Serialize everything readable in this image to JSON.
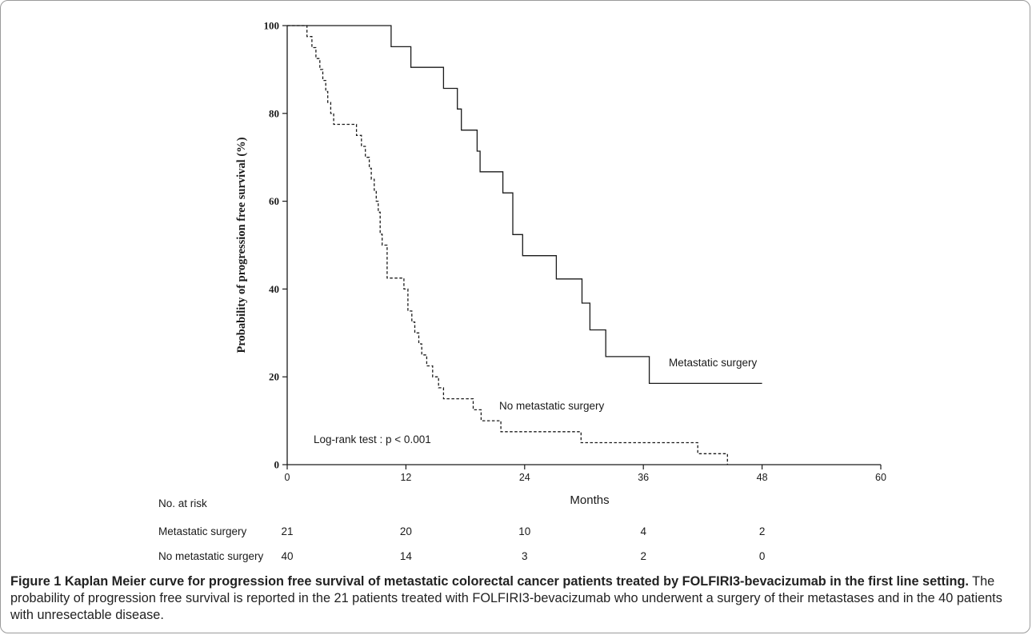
{
  "chart_data": {
    "type": "line",
    "subtype": "kaplan-meier-step",
    "ylabel": "Probability of progression free survival (%)",
    "xlabel": "Months",
    "xlim": [
      0,
      60
    ],
    "ylim": [
      0,
      100
    ],
    "xticks": [
      0,
      12,
      24,
      36,
      48,
      60
    ],
    "yticks": [
      0,
      20,
      40,
      60,
      80,
      100
    ],
    "xtick_labels": [
      "0",
      "12",
      "24",
      "36",
      "48",
      "60"
    ],
    "ytick_labels": [
      "0",
      "20",
      "40",
      "60",
      "80",
      "100"
    ],
    "grid": false,
    "annotation": "Log-rank test : p < 0.001",
    "series": [
      {
        "name": "Metastatic surgery",
        "line_style": "solid",
        "x": [
          0,
          10.5,
          10.5,
          12.5,
          12.5,
          15.8,
          15.8,
          17.2,
          17.2,
          17.6,
          17.6,
          19.2,
          19.2,
          19.5,
          19.5,
          21.8,
          21.8,
          22.8,
          22.8,
          23.8,
          23.8,
          27.2,
          27.2,
          29.8,
          29.8,
          30.6,
          30.6,
          32.2,
          32.2,
          36.6,
          36.6,
          48
        ],
        "y": [
          100,
          100,
          95.2,
          95.2,
          90.5,
          90.5,
          85.7,
          85.7,
          81,
          81,
          76.2,
          76.2,
          71.4,
          71.4,
          66.7,
          66.7,
          61.9,
          61.9,
          52.4,
          52.4,
          47.6,
          47.6,
          42.3,
          42.3,
          36.8,
          36.8,
          30.7,
          30.7,
          24.6,
          24.6,
          18.5,
          18.5
        ]
      },
      {
        "name": "No metastatic surgery",
        "line_style": "dashed",
        "x": [
          0,
          2.0,
          2.0,
          2.5,
          2.5,
          2.9,
          2.9,
          3.3,
          3.3,
          3.6,
          3.6,
          3.9,
          3.9,
          4.1,
          4.1,
          4.4,
          4.4,
          4.7,
          4.7,
          7.0,
          7.0,
          7.5,
          7.5,
          7.9,
          7.9,
          8.3,
          8.3,
          8.5,
          8.5,
          8.8,
          8.8,
          9.0,
          9.0,
          9.2,
          9.2,
          9.4,
          9.4,
          9.6,
          9.6,
          10.1,
          10.1,
          11.8,
          11.8,
          12.2,
          12.2,
          12.6,
          12.6,
          12.9,
          12.9,
          13.3,
          13.3,
          13.6,
          13.6,
          14.1,
          14.1,
          14.7,
          14.7,
          15.3,
          15.3,
          15.8,
          15.8,
          18.8,
          18.8,
          19.6,
          19.6,
          21.1,
          21.1,
          21.6,
          21.6,
          29.7,
          29.7,
          41.5,
          41.5,
          44.5,
          44.5
        ],
        "y": [
          100,
          100,
          97.5,
          97.5,
          95,
          95,
          92.5,
          92.5,
          90,
          90,
          87.5,
          87.5,
          85,
          85,
          82.5,
          82.5,
          80,
          80,
          77.5,
          77.5,
          75,
          75,
          72.5,
          72.5,
          70,
          70,
          67.5,
          67.5,
          65,
          65,
          62.5,
          62.5,
          60,
          60,
          57.5,
          57.5,
          52.5,
          52.5,
          50,
          50,
          42.5,
          42.5,
          40,
          40,
          35,
          35,
          32.5,
          32.5,
          30,
          30,
          27.5,
          27.5,
          25,
          25,
          22.5,
          22.5,
          20,
          20,
          17.5,
          17.5,
          15,
          15,
          12.5,
          12.5,
          10,
          10,
          10,
          10,
          7.5,
          7.5,
          5,
          5,
          2.5,
          2.5,
          0
        ]
      }
    ],
    "risk_table": {
      "title": "No. at risk",
      "rows": [
        {
          "label": "Metastatic surgery",
          "counts": [
            "21",
            "20",
            "10",
            "4",
            "2"
          ]
        },
        {
          "label": "No metastatic surgery",
          "counts": [
            "40",
            "14",
            "3",
            "2",
            "0"
          ]
        }
      ]
    }
  },
  "caption": {
    "bold": "Figure 1 Kaplan Meier curve for progression free survival of metastatic colorectal cancer patients treated by FOLFIRI3-bevacizumab in the first line setting.",
    "text": " The probability of progression free survival is reported in the 21 patients treated with FOLFIRI3-bevacizumab who underwent a surgery of their metastases and in the 40 patients with unresectable disease."
  }
}
